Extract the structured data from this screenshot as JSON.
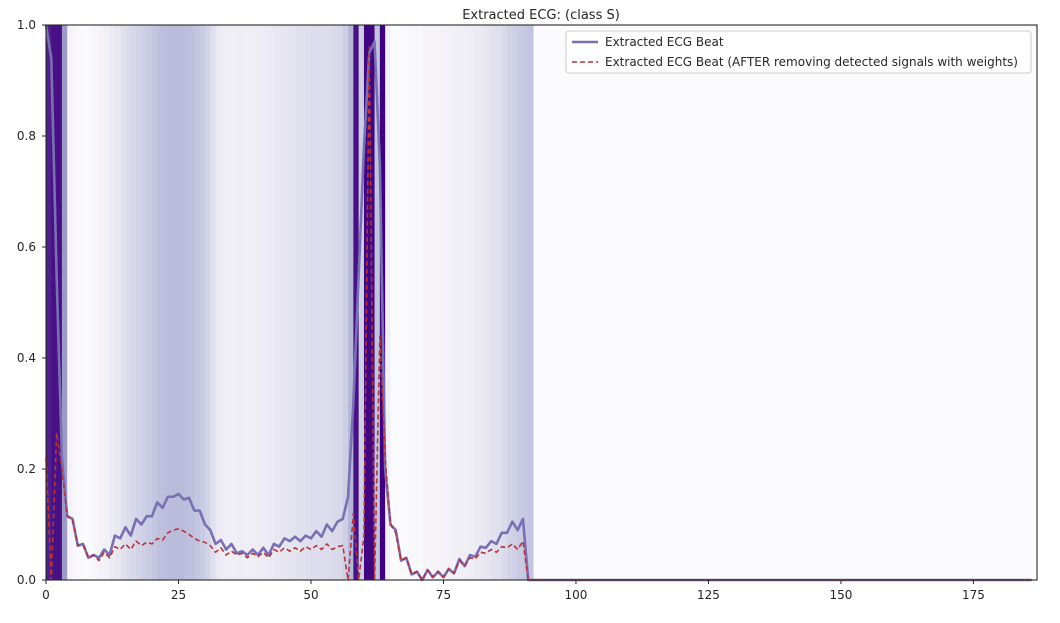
{
  "chart_data": {
    "type": "line",
    "title": "Extracted ECG: (class S)",
    "xlabel": "",
    "ylabel": "",
    "xlim": [
      0,
      187
    ],
    "ylim": [
      0,
      1.0
    ],
    "x_ticks": [
      0,
      25,
      50,
      75,
      100,
      125,
      150,
      175
    ],
    "y_ticks": [
      0.0,
      0.2,
      0.4,
      0.6,
      0.8,
      1.0
    ],
    "x_tick_labels": [
      "0",
      "25",
      "50",
      "75",
      "100",
      "125",
      "150",
      "175"
    ],
    "y_tick_labels": [
      "0.0",
      "0.2",
      "0.4",
      "0.6",
      "0.8",
      "1.0"
    ],
    "grid": false,
    "legend_position": "top-right",
    "legend": {
      "entries": [
        {
          "label": "Extracted ECG Beat",
          "style": "solid",
          "color": "#7b6fb4"
        },
        {
          "label": "Extracted ECG Beat (AFTER removing detected signals with weights)",
          "style": "dashed",
          "color": "#b2363d"
        }
      ]
    },
    "background_weight_colormap": "Purples",
    "series": [
      {
        "name": "Extracted ECG Beat",
        "style": "solid",
        "color": "#7b6fb4",
        "x": [
          0,
          1,
          2,
          3,
          4,
          5,
          6,
          7,
          8,
          9,
          10,
          11,
          12,
          13,
          14,
          15,
          16,
          17,
          18,
          19,
          20,
          21,
          22,
          23,
          24,
          25,
          26,
          27,
          28,
          29,
          30,
          31,
          32,
          33,
          34,
          35,
          36,
          37,
          38,
          39,
          40,
          41,
          42,
          43,
          44,
          45,
          46,
          47,
          48,
          49,
          50,
          51,
          52,
          53,
          54,
          55,
          56,
          57,
          58,
          59,
          60,
          61,
          62,
          63,
          64,
          65,
          66,
          67,
          68,
          69,
          70,
          71,
          72,
          73,
          74,
          75,
          76,
          77,
          78,
          79,
          80,
          81,
          82,
          83,
          84,
          85,
          86,
          87,
          88,
          89,
          90,
          91,
          92,
          93,
          186
        ],
        "y": [
          1.0,
          0.94,
          0.55,
          0.22,
          0.115,
          0.11,
          0.062,
          0.065,
          0.04,
          0.045,
          0.04,
          0.055,
          0.045,
          0.08,
          0.075,
          0.095,
          0.08,
          0.11,
          0.1,
          0.115,
          0.115,
          0.14,
          0.13,
          0.15,
          0.15,
          0.155,
          0.145,
          0.148,
          0.125,
          0.125,
          0.1,
          0.09,
          0.065,
          0.072,
          0.055,
          0.065,
          0.048,
          0.052,
          0.045,
          0.055,
          0.045,
          0.058,
          0.045,
          0.065,
          0.06,
          0.075,
          0.07,
          0.078,
          0.07,
          0.08,
          0.075,
          0.088,
          0.078,
          0.1,
          0.088,
          0.105,
          0.11,
          0.15,
          0.32,
          0.55,
          0.78,
          0.95,
          0.97,
          0.75,
          0.2,
          0.1,
          0.09,
          0.035,
          0.04,
          0.01,
          0.015,
          0.0,
          0.018,
          0.005,
          0.015,
          0.005,
          0.02,
          0.012,
          0.038,
          0.025,
          0.045,
          0.042,
          0.06,
          0.058,
          0.07,
          0.065,
          0.085,
          0.085,
          0.105,
          0.09,
          0.11,
          0.0,
          0.0,
          0.0,
          0.0
        ]
      },
      {
        "name": "Extracted ECG Beat (AFTER removing detected signals with weights)",
        "style": "dashed",
        "color": "#b2363d",
        "x": [
          0,
          1,
          2,
          3,
          4,
          5,
          6,
          7,
          8,
          9,
          10,
          11,
          12,
          13,
          14,
          15,
          16,
          17,
          18,
          19,
          20,
          21,
          22,
          23,
          24,
          25,
          26,
          27,
          28,
          29,
          30,
          31,
          32,
          33,
          34,
          35,
          36,
          37,
          38,
          39,
          40,
          41,
          42,
          43,
          44,
          45,
          46,
          47,
          48,
          49,
          50,
          51,
          52,
          53,
          54,
          55,
          56,
          57,
          58,
          59,
          60,
          61,
          62,
          63,
          64,
          65,
          66,
          67,
          68,
          69,
          70,
          71,
          72,
          73,
          74,
          75,
          76,
          77,
          78,
          79,
          80,
          81,
          82,
          83,
          84,
          85,
          86,
          87,
          88,
          89,
          90,
          91,
          92,
          93,
          186
        ],
        "y": [
          0.22,
          0.0,
          0.265,
          0.2,
          0.115,
          0.11,
          0.062,
          0.063,
          0.04,
          0.045,
          0.035,
          0.05,
          0.04,
          0.06,
          0.055,
          0.065,
          0.055,
          0.07,
          0.062,
          0.068,
          0.065,
          0.075,
          0.072,
          0.085,
          0.09,
          0.092,
          0.088,
          0.082,
          0.075,
          0.07,
          0.068,
          0.062,
          0.05,
          0.058,
          0.045,
          0.052,
          0.045,
          0.048,
          0.04,
          0.048,
          0.042,
          0.05,
          0.04,
          0.055,
          0.05,
          0.058,
          0.052,
          0.058,
          0.052,
          0.06,
          0.055,
          0.062,
          0.055,
          0.065,
          0.055,
          0.06,
          0.062,
          0.0,
          0.12,
          0.0,
          0.08,
          0.96,
          0.0,
          0.44,
          0.22,
          0.1,
          0.085,
          0.035,
          0.04,
          0.01,
          0.015,
          0.0,
          0.018,
          0.005,
          0.015,
          0.005,
          0.02,
          0.012,
          0.035,
          0.025,
          0.04,
          0.038,
          0.05,
          0.048,
          0.055,
          0.05,
          0.06,
          0.058,
          0.065,
          0.055,
          0.07,
          0.0,
          0.0,
          0.0,
          0.0
        ]
      }
    ],
    "weight_bands": {
      "x_start": 0,
      "values": [
        0.9,
        0.95,
        0.95,
        0.5,
        0.08,
        0.04,
        0.02,
        0.01,
        0.03,
        0.05,
        0.08,
        0.1,
        0.14,
        0.16,
        0.2,
        0.24,
        0.26,
        0.28,
        0.3,
        0.32,
        0.34,
        0.36,
        0.37,
        0.38,
        0.38,
        0.38,
        0.37,
        0.36,
        0.34,
        0.32,
        0.28,
        0.22,
        0.15,
        0.12,
        0.12,
        0.12,
        0.13,
        0.12,
        0.12,
        0.12,
        0.13,
        0.14,
        0.15,
        0.16,
        0.17,
        0.18,
        0.19,
        0.2,
        0.21,
        0.22,
        0.23,
        0.23,
        0.24,
        0.24,
        0.25,
        0.26,
        0.3,
        0.4,
        0.95,
        0.3,
        0.98,
        0.98,
        0.35,
        1.0,
        0.1,
        0.02,
        0.01,
        0.02,
        0.03,
        0.04,
        0.04,
        0.05,
        0.06,
        0.06,
        0.07,
        0.08,
        0.09,
        0.1,
        0.11,
        0.12,
        0.13,
        0.14,
        0.16,
        0.18,
        0.2,
        0.22,
        0.25,
        0.28,
        0.3,
        0.32,
        0.33,
        0.34
      ],
      "rest": 0.01
    }
  }
}
